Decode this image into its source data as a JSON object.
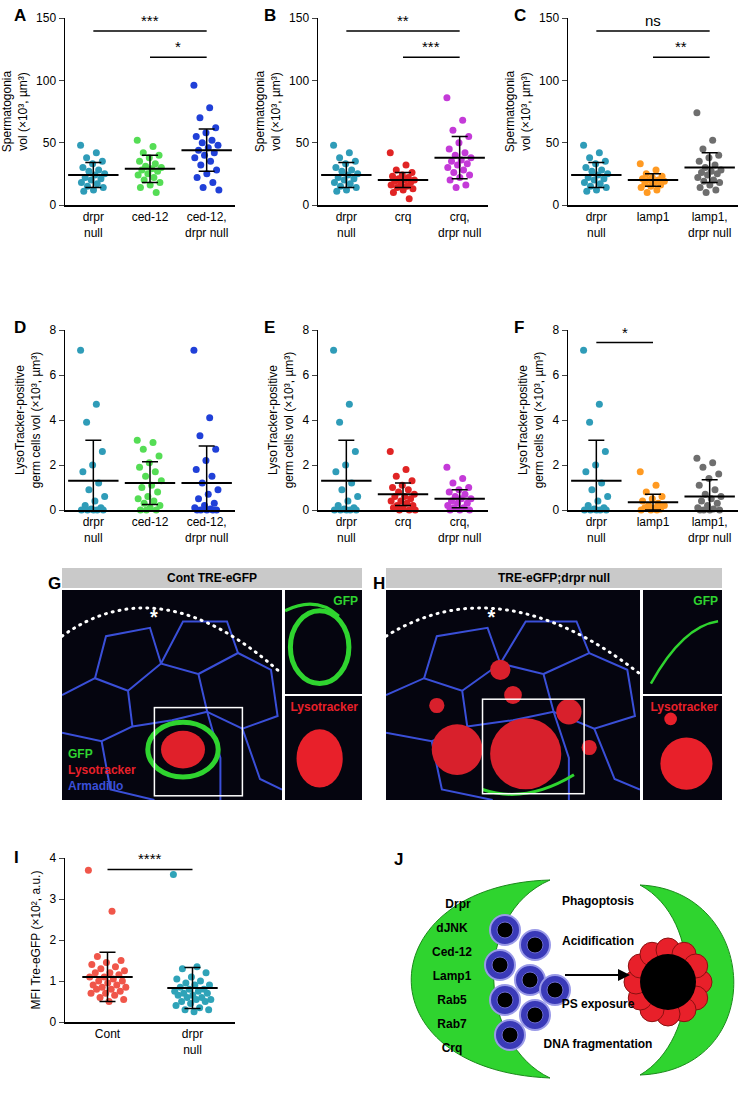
{
  "chart_data": [
    {
      "panel": "A",
      "type": "scatter",
      "y_label": "Spermatogonia\nvol (×10³, µm³)",
      "categories": [
        "drpr null",
        "ced-12",
        "ced-12, drpr null"
      ],
      "colors": [
        "#2f9cb8",
        "#55dd55",
        "#2040d8"
      ],
      "values": [
        [
          48,
          42,
          38,
          35,
          33,
          30,
          28,
          27,
          25,
          24,
          22,
          21,
          20,
          18,
          17,
          15,
          14,
          12,
          11
        ],
        [
          52,
          47,
          42,
          40,
          38,
          35,
          33,
          31,
          30,
          29,
          28,
          27,
          25,
          24,
          22,
          20,
          18,
          16,
          14,
          10
        ],
        [
          96,
          78,
          70,
          62,
          58,
          55,
          52,
          50,
          48,
          46,
          44,
          42,
          40,
          38,
          35,
          32,
          28,
          25,
          22,
          18,
          14,
          12
        ]
      ],
      "mean": [
        24,
        29,
        44
      ],
      "sd": [
        10,
        11,
        17
      ],
      "ylim": [
        0,
        150
      ],
      "yticks": [
        0,
        50,
        100,
        150
      ],
      "comparisons": [
        {
          "from": 0,
          "to": 2,
          "label": "***"
        },
        {
          "from": 1,
          "to": 2,
          "label": "*"
        }
      ]
    },
    {
      "panel": "B",
      "type": "scatter",
      "y_label": "Spermatogonia\nvol (×10³, µm³)",
      "categories": [
        "drpr null",
        "crq",
        "crq, drpr null"
      ],
      "colors": [
        "#2f9cb8",
        "#e02424",
        "#c43ad8"
      ],
      "values": [
        [
          48,
          42,
          38,
          35,
          33,
          30,
          28,
          27,
          25,
          24,
          22,
          21,
          20,
          18,
          17,
          15,
          14,
          12,
          11
        ],
        [
          42,
          32,
          28,
          26,
          24,
          23,
          22,
          21,
          20,
          20,
          19,
          18,
          17,
          16,
          15,
          14,
          13,
          12,
          10,
          5
        ],
        [
          86,
          68,
          60,
          55,
          50,
          45,
          42,
          40,
          38,
          36,
          35,
          33,
          32,
          30,
          28,
          26,
          24,
          22,
          20,
          16,
          14
        ]
      ],
      "mean": [
        24,
        20,
        38
      ],
      "sd": [
        10,
        6,
        17
      ],
      "ylim": [
        0,
        150
      ],
      "yticks": [
        0,
        50,
        100,
        150
      ],
      "comparisons": [
        {
          "from": 0,
          "to": 2,
          "label": "**"
        },
        {
          "from": 1,
          "to": 2,
          "label": "***"
        }
      ]
    },
    {
      "panel": "C",
      "type": "scatter",
      "y_label": "Spermatogonia\nvol (×10³, µm³)",
      "categories": [
        "drpr null",
        "lamp1",
        "lamp1, drpr null"
      ],
      "colors": [
        "#2f9cb8",
        "#ff9a22",
        "#6e6e6e"
      ],
      "values": [
        [
          48,
          42,
          38,
          35,
          33,
          30,
          28,
          27,
          25,
          24,
          22,
          21,
          20,
          18,
          17,
          15,
          14,
          12,
          11
        ],
        [
          33,
          28,
          25,
          23,
          22,
          21,
          20,
          20,
          19,
          18,
          17,
          16,
          15,
          14,
          12,
          10
        ],
        [
          74,
          52,
          45,
          40,
          38,
          35,
          32,
          30,
          28,
          27,
          26,
          25,
          24,
          22,
          20,
          19,
          18,
          16,
          14,
          12,
          10
        ]
      ],
      "mean": [
        24,
        20,
        30
      ],
      "sd": [
        10,
        5,
        12
      ],
      "ylim": [
        0,
        150
      ],
      "yticks": [
        0,
        50,
        100,
        150
      ],
      "comparisons": [
        {
          "from": 0,
          "to": 2,
          "label": "ns"
        },
        {
          "from": 1,
          "to": 2,
          "label": "**"
        }
      ]
    },
    {
      "panel": "D",
      "type": "scatter",
      "y_label": "LysoTracker-positive\ngerm cells vol (×10³, µm³)",
      "categories": [
        "drpr null",
        "ced-12",
        "ced-12, drpr null"
      ],
      "colors": [
        "#2f9cb8",
        "#55dd55",
        "#2040d8"
      ],
      "values": [
        [
          7.1,
          4.7,
          3.9,
          2.6,
          2.0,
          1.7,
          1.2,
          0.9,
          0.6,
          0.4,
          0.2,
          0.1,
          0.05,
          0,
          0,
          0,
          0,
          0
        ],
        [
          3.1,
          3.0,
          2.7,
          2.4,
          2.1,
          1.9,
          1.7,
          1.5,
          1.3,
          1.1,
          1.0,
          0.8,
          0.6,
          0.5,
          0.4,
          0.3,
          0.2,
          0.1,
          0,
          0,
          0
        ],
        [
          7.1,
          4.1,
          3.3,
          2.7,
          2.2,
          1.8,
          1.5,
          1.2,
          0.9,
          0.7,
          0.5,
          0.3,
          0.2,
          0.1,
          0.05,
          0,
          0,
          0,
          0,
          0
        ]
      ],
      "mean": [
        1.3,
        1.2,
        1.2
      ],
      "sd": [
        1.8,
        0.95,
        1.65
      ],
      "ylim": [
        0,
        8
      ],
      "yticks": [
        0,
        2,
        4,
        6,
        8
      ],
      "comparisons": []
    },
    {
      "panel": "E",
      "type": "scatter",
      "y_label": "LysoTracker-positive\ngerm cells vol (×10³, µm³)",
      "categories": [
        "drpr null",
        "crq",
        "crq, drpr null"
      ],
      "colors": [
        "#2f9cb8",
        "#e02424",
        "#c43ad8"
      ],
      "values": [
        [
          7.1,
          4.7,
          3.9,
          2.6,
          2.0,
          1.7,
          1.2,
          0.9,
          0.6,
          0.4,
          0.2,
          0.1,
          0.05,
          0,
          0,
          0,
          0,
          0
        ],
        [
          2.6,
          1.8,
          1.5,
          1.3,
          1.1,
          1.0,
          0.9,
          0.8,
          0.7,
          0.6,
          0.6,
          0.5,
          0.4,
          0.4,
          0.3,
          0.2,
          0.2,
          0.1,
          0.1,
          0,
          0,
          0
        ],
        [
          1.9,
          1.4,
          1.2,
          1.0,
          0.9,
          0.8,
          0.7,
          0.6,
          0.5,
          0.5,
          0.4,
          0.3,
          0.3,
          0.2,
          0.1,
          0.1,
          0,
          0,
          0
        ]
      ],
      "mean": [
        1.3,
        0.7,
        0.5
      ],
      "sd": [
        1.8,
        0.5,
        0.4
      ],
      "ylim": [
        0,
        8
      ],
      "yticks": [
        0,
        2,
        4,
        6,
        8
      ],
      "comparisons": []
    },
    {
      "panel": "F",
      "type": "scatter",
      "y_label": "LysoTracker-positive\ngerm cells vol (×10³, µm³)",
      "categories": [
        "drpr null",
        "lamp1",
        "lamp1, drpr null"
      ],
      "colors": [
        "#2f9cb8",
        "#ff9a22",
        "#6e6e6e"
      ],
      "values": [
        [
          7.1,
          4.7,
          3.9,
          2.6,
          2.0,
          1.7,
          1.2,
          0.9,
          0.6,
          0.4,
          0.2,
          0.1,
          0.05,
          0,
          0,
          0,
          0,
          0
        ],
        [
          1.7,
          1.1,
          0.8,
          0.6,
          0.5,
          0.4,
          0.3,
          0.2,
          0.2,
          0.1,
          0.1,
          0.05,
          0,
          0,
          0
        ],
        [
          2.3,
          2.1,
          1.9,
          1.6,
          1.4,
          1.1,
          0.9,
          0.7,
          0.6,
          0.5,
          0.4,
          0.3,
          0.2,
          0.1,
          0.05,
          0,
          0,
          0,
          0
        ]
      ],
      "mean": [
        1.3,
        0.35,
        0.6
      ],
      "sd": [
        1.8,
        0.35,
        0.75
      ],
      "ylim": [
        0,
        8
      ],
      "yticks": [
        0,
        2,
        4,
        6,
        8
      ],
      "comparisons": [
        {
          "from": 0,
          "to": 1,
          "label": "*"
        }
      ]
    },
    {
      "panel": "I",
      "type": "scatter",
      "y_label": "MFI Tre-eGFP (×10², a.u.)",
      "categories": [
        "Cont",
        "drpr null"
      ],
      "colors": [
        "#f0564a",
        "#2fa3b8"
      ],
      "values": [
        [
          3.7,
          2.7,
          1.6,
          1.5,
          1.45,
          1.4,
          1.35,
          1.3,
          1.25,
          1.2,
          1.2,
          1.15,
          1.1,
          1.1,
          1.05,
          1.0,
          1.0,
          0.95,
          0.9,
          0.9,
          0.85,
          0.85,
          0.8,
          0.8,
          0.75,
          0.7,
          0.7,
          0.65,
          0.6,
          0.55,
          0.5
        ],
        [
          3.6,
          1.35,
          1.3,
          1.2,
          1.1,
          1.05,
          1.0,
          0.95,
          0.9,
          0.9,
          0.85,
          0.8,
          0.8,
          0.75,
          0.75,
          0.7,
          0.7,
          0.65,
          0.65,
          0.6,
          0.6,
          0.55,
          0.55,
          0.5,
          0.5,
          0.45,
          0.4,
          0.35,
          0.3,
          0.3,
          0.25
        ]
      ],
      "mean": [
        1.1,
        0.83
      ],
      "sd": [
        0.6,
        0.5
      ],
      "ylim": [
        0,
        4
      ],
      "yticks": [
        0,
        1,
        2,
        3,
        4
      ],
      "comparisons": [
        {
          "from": 0,
          "to": 1,
          "label": "****"
        }
      ]
    }
  ],
  "images": [
    {
      "panel": "G",
      "header": "Cont TRE-eGFP",
      "asterisk": "*",
      "channels": [
        {
          "label": "GFP",
          "color": "#2fd42f"
        },
        {
          "label": "Lysotracker",
          "color": "#e8202a"
        },
        {
          "label": "Armadillo",
          "color": "#3a4fd8"
        }
      ],
      "insets": [
        {
          "label": "GFP",
          "color": "#2fd42f"
        },
        {
          "label": "Lysotracker",
          "color": "#e8202a"
        }
      ]
    },
    {
      "panel": "H",
      "header": "TRE-eGFP;drpr null",
      "asterisk": "*",
      "channels": [],
      "insets": [
        {
          "label": "GFP",
          "color": "#2fd42f"
        },
        {
          "label": "Lysotracker",
          "color": "#e8202a"
        }
      ]
    }
  ],
  "diagram": {
    "panel": "J",
    "cell_labels": [
      "Drpr",
      "dJNK",
      "Ced-12",
      "Lamp1",
      "Rab5",
      "Rab7",
      "Crq"
    ],
    "process_labels": [
      "Phagoptosis",
      "Acidification",
      "PS exposure",
      "DNA fragmentation"
    ]
  }
}
